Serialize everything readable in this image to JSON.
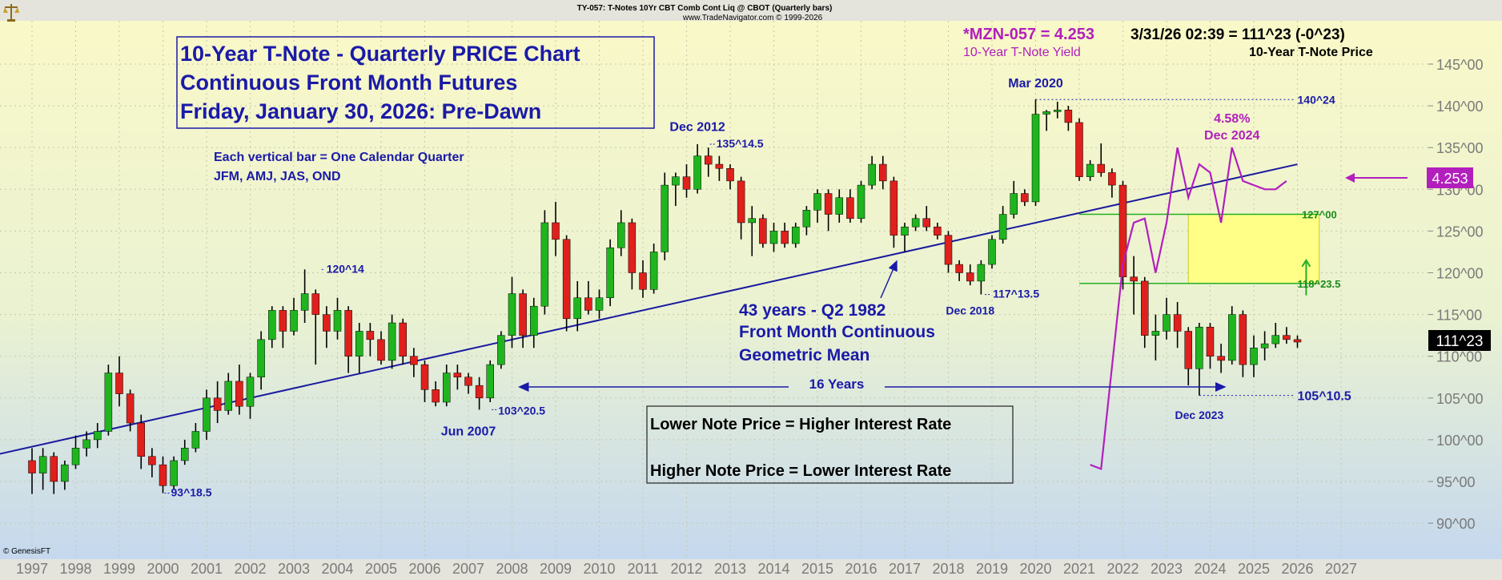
{
  "header": {
    "line1": "TY-057:  T-Notes 10Yr CBT Comb Cont Liq @ CBOT  (Quarterly bars)",
    "line2": "www.TradeNavigator.com © 1999-2026"
  },
  "readout": {
    "yield_label": "*MZN-057 = 4.253",
    "price_label": "3/31/26 02:39 = 111^23 (-0^23)",
    "yield_caption": "10-Year T-Note Yield",
    "price_caption": "10-Year T-Note Price"
  },
  "title_box": {
    "line1": "10-Year T-Note - Quarterly PRICE Chart",
    "line2": "Continuous Front Month Futures",
    "line3": "Friday, January 30, 2026: Pre-Dawn"
  },
  "notes": {
    "bar_note1": "Each vertical bar = One Calendar Quarter",
    "bar_note2": "JFM, AMJ, JAS, OND",
    "mean_line1": "43 years - Q2 1982",
    "mean_line2": "Front Month Continuous",
    "mean_line3": "Geometric Mean",
    "span_label": "16 Years",
    "rate_line1": "Lower Note Price = Higher Interest Rate",
    "rate_line2": "Higher Note Price = Lower Interest Rate"
  },
  "copyright": "© GenesisFT",
  "icons": {
    "corner": "scale-icon"
  },
  "colors": {
    "up": "#1fb51f",
    "down": "#e0201c",
    "annotation": "#1a1aa8",
    "yield": "#b21fbd",
    "trend": "#1a1aa0",
    "box": "#ffff88",
    "support": "#22b022"
  },
  "chart_data": {
    "type": "candlestick",
    "x_axis": {
      "labels": [
        "1997",
        "1998",
        "1999",
        "2000",
        "2001",
        "2002",
        "2003",
        "2004",
        "2005",
        "2006",
        "2007",
        "2008",
        "2009",
        "2010",
        "2011",
        "2012",
        "2013",
        "2014",
        "2015",
        "2016",
        "2017",
        "2018",
        "2019",
        "2020",
        "2021",
        "2022",
        "2023",
        "2024",
        "2025",
        "2026",
        "2027"
      ]
    },
    "y_axis": {
      "range": [
        85,
        149
      ],
      "tick_labels": [
        "90^00",
        "95^00",
        "100^00",
        "105^00",
        "110^00",
        "115^00",
        "120^00",
        "125^00",
        "130^00",
        "135^00",
        "140^00",
        "145^00"
      ],
      "tick_values": [
        90,
        95,
        100,
        105,
        110,
        115,
        120,
        125,
        130,
        135,
        140,
        145
      ],
      "position": "right"
    },
    "candles": [
      {
        "t": 1997.0,
        "o": 97.5,
        "h": 99,
        "l": 93.5,
        "c": 96
      },
      {
        "t": 1997.25,
        "o": 96,
        "h": 99,
        "l": 94,
        "c": 98
      },
      {
        "t": 1997.5,
        "o": 98,
        "h": 98.5,
        "l": 93.5,
        "c": 95
      },
      {
        "t": 1997.75,
        "o": 95,
        "h": 97.5,
        "l": 94,
        "c": 97
      },
      {
        "t": 1998.0,
        "o": 97,
        "h": 100.5,
        "l": 96.5,
        "c": 99
      },
      {
        "t": 1998.25,
        "o": 99,
        "h": 101,
        "l": 98,
        "c": 100
      },
      {
        "t": 1998.5,
        "o": 100,
        "h": 102,
        "l": 99,
        "c": 101
      },
      {
        "t": 1998.75,
        "o": 101,
        "h": 109,
        "l": 100.5,
        "c": 108
      },
      {
        "t": 1999.0,
        "o": 108,
        "h": 110,
        "l": 104,
        "c": 105.5
      },
      {
        "t": 1999.25,
        "o": 105.5,
        "h": 106,
        "l": 101,
        "c": 102
      },
      {
        "t": 1999.5,
        "o": 102,
        "h": 103,
        "l": 96.5,
        "c": 98
      },
      {
        "t": 1999.75,
        "o": 98,
        "h": 99,
        "l": 95.5,
        "c": 97
      },
      {
        "t": 2000.0,
        "o": 97,
        "h": 98,
        "l": 93.6,
        "c": 94.5
      },
      {
        "t": 2000.25,
        "o": 94.5,
        "h": 98,
        "l": 94,
        "c": 97.5
      },
      {
        "t": 2000.5,
        "o": 97.5,
        "h": 100,
        "l": 97,
        "c": 99
      },
      {
        "t": 2000.75,
        "o": 99,
        "h": 102,
        "l": 98.5,
        "c": 101
      },
      {
        "t": 2001.0,
        "o": 101,
        "h": 106,
        "l": 100,
        "c": 105
      },
      {
        "t": 2001.25,
        "o": 105,
        "h": 107,
        "l": 102,
        "c": 103.5
      },
      {
        "t": 2001.5,
        "o": 103.5,
        "h": 108,
        "l": 103,
        "c": 107
      },
      {
        "t": 2001.75,
        "o": 107,
        "h": 109,
        "l": 103,
        "c": 104
      },
      {
        "t": 2002.0,
        "o": 104,
        "h": 108,
        "l": 102.5,
        "c": 107.5
      },
      {
        "t": 2002.25,
        "o": 107.5,
        "h": 113,
        "l": 106,
        "c": 112
      },
      {
        "t": 2002.5,
        "o": 112,
        "h": 116,
        "l": 111,
        "c": 115.5
      },
      {
        "t": 2002.75,
        "o": 115.5,
        "h": 116,
        "l": 111,
        "c": 113
      },
      {
        "t": 2003.0,
        "o": 113,
        "h": 117,
        "l": 112.5,
        "c": 115.5
      },
      {
        "t": 2003.25,
        "o": 115.5,
        "h": 120.4,
        "l": 114,
        "c": 117.5
      },
      {
        "t": 2003.5,
        "o": 117.5,
        "h": 118,
        "l": 109,
        "c": 115
      },
      {
        "t": 2003.75,
        "o": 115,
        "h": 116,
        "l": 111,
        "c": 113
      },
      {
        "t": 2004.0,
        "o": 113,
        "h": 117,
        "l": 112,
        "c": 115.5
      },
      {
        "t": 2004.25,
        "o": 115.5,
        "h": 116,
        "l": 108,
        "c": 110
      },
      {
        "t": 2004.5,
        "o": 110,
        "h": 114,
        "l": 108,
        "c": 113
      },
      {
        "t": 2004.75,
        "o": 113,
        "h": 114,
        "l": 110,
        "c": 112
      },
      {
        "t": 2005.0,
        "o": 112,
        "h": 113,
        "l": 109,
        "c": 109.5
      },
      {
        "t": 2005.25,
        "o": 109.5,
        "h": 115,
        "l": 108.5,
        "c": 114
      },
      {
        "t": 2005.5,
        "o": 114,
        "h": 114.5,
        "l": 109,
        "c": 110
      },
      {
        "t": 2005.75,
        "o": 110,
        "h": 111,
        "l": 107.5,
        "c": 109
      },
      {
        "t": 2006.0,
        "o": 109,
        "h": 109.5,
        "l": 104.5,
        "c": 106
      },
      {
        "t": 2006.25,
        "o": 106,
        "h": 107,
        "l": 104,
        "c": 104.5
      },
      {
        "t": 2006.5,
        "o": 104.5,
        "h": 109,
        "l": 104,
        "c": 108
      },
      {
        "t": 2006.75,
        "o": 108,
        "h": 109,
        "l": 106,
        "c": 107.5
      },
      {
        "t": 2007.0,
        "o": 107.5,
        "h": 108,
        "l": 105.5,
        "c": 106.5
      },
      {
        "t": 2007.25,
        "o": 106.5,
        "h": 107.5,
        "l": 103.6,
        "c": 105
      },
      {
        "t": 2007.5,
        "o": 105,
        "h": 109.5,
        "l": 104.5,
        "c": 109
      },
      {
        "t": 2007.75,
        "o": 109,
        "h": 113,
        "l": 108.5,
        "c": 112.5
      },
      {
        "t": 2008.0,
        "o": 112.5,
        "h": 119.5,
        "l": 111,
        "c": 117.5
      },
      {
        "t": 2008.25,
        "o": 117.5,
        "h": 118,
        "l": 111,
        "c": 112.5
      },
      {
        "t": 2008.5,
        "o": 112.5,
        "h": 117,
        "l": 111,
        "c": 116
      },
      {
        "t": 2008.75,
        "o": 116,
        "h": 127.5,
        "l": 115,
        "c": 126
      },
      {
        "t": 2009.0,
        "o": 126,
        "h": 128.5,
        "l": 122,
        "c": 124
      },
      {
        "t": 2009.25,
        "o": 124,
        "h": 124.5,
        "l": 113,
        "c": 114.5
      },
      {
        "t": 2009.5,
        "o": 114.5,
        "h": 119,
        "l": 113,
        "c": 117
      },
      {
        "t": 2009.75,
        "o": 117,
        "h": 119,
        "l": 115,
        "c": 115.5
      },
      {
        "t": 2010.0,
        "o": 115.5,
        "h": 118,
        "l": 114.5,
        "c": 117
      },
      {
        "t": 2010.25,
        "o": 117,
        "h": 124,
        "l": 116,
        "c": 123
      },
      {
        "t": 2010.5,
        "o": 123,
        "h": 127.5,
        "l": 122,
        "c": 126
      },
      {
        "t": 2010.75,
        "o": 126,
        "h": 126.5,
        "l": 118,
        "c": 120
      },
      {
        "t": 2011.0,
        "o": 120,
        "h": 121.5,
        "l": 117,
        "c": 118
      },
      {
        "t": 2011.25,
        "o": 118,
        "h": 123.5,
        "l": 117.5,
        "c": 122.5
      },
      {
        "t": 2011.5,
        "o": 122.5,
        "h": 132,
        "l": 121.5,
        "c": 130.5
      },
      {
        "t": 2011.75,
        "o": 130.5,
        "h": 132,
        "l": 128,
        "c": 131.5
      },
      {
        "t": 2012.0,
        "o": 131.5,
        "h": 133,
        "l": 129,
        "c": 130
      },
      {
        "t": 2012.25,
        "o": 130,
        "h": 135.4,
        "l": 129.5,
        "c": 134
      },
      {
        "t": 2012.5,
        "o": 134,
        "h": 135,
        "l": 131.5,
        "c": 133
      },
      {
        "t": 2012.75,
        "o": 133,
        "h": 134,
        "l": 131,
        "c": 132.5
      },
      {
        "t": 2013.0,
        "o": 132.5,
        "h": 133,
        "l": 130,
        "c": 131
      },
      {
        "t": 2013.25,
        "o": 131,
        "h": 131.5,
        "l": 124,
        "c": 126
      },
      {
        "t": 2013.5,
        "o": 126,
        "h": 128,
        "l": 122,
        "c": 126.5
      },
      {
        "t": 2013.75,
        "o": 126.5,
        "h": 127,
        "l": 123,
        "c": 123.5
      },
      {
        "t": 2014.0,
        "o": 123.5,
        "h": 126,
        "l": 122.5,
        "c": 125
      },
      {
        "t": 2014.25,
        "o": 125,
        "h": 126,
        "l": 123,
        "c": 123.5
      },
      {
        "t": 2014.5,
        "o": 123.5,
        "h": 126,
        "l": 123,
        "c": 125.5
      },
      {
        "t": 2014.75,
        "o": 125.5,
        "h": 128,
        "l": 124.5,
        "c": 127.5
      },
      {
        "t": 2015.0,
        "o": 127.5,
        "h": 130,
        "l": 126,
        "c": 129.5
      },
      {
        "t": 2015.25,
        "o": 129.5,
        "h": 130,
        "l": 125,
        "c": 127
      },
      {
        "t": 2015.5,
        "o": 127,
        "h": 130,
        "l": 126,
        "c": 129
      },
      {
        "t": 2015.75,
        "o": 129,
        "h": 130,
        "l": 126,
        "c": 126.5
      },
      {
        "t": 2016.0,
        "o": 126.5,
        "h": 131,
        "l": 126,
        "c": 130.5
      },
      {
        "t": 2016.25,
        "o": 130.5,
        "h": 134,
        "l": 130,
        "c": 133
      },
      {
        "t": 2016.5,
        "o": 133,
        "h": 134,
        "l": 130,
        "c": 131
      },
      {
        "t": 2016.75,
        "o": 131,
        "h": 131.5,
        "l": 123,
        "c": 124.5
      },
      {
        "t": 2017.0,
        "o": 124.5,
        "h": 126,
        "l": 122.5,
        "c": 125.5
      },
      {
        "t": 2017.25,
        "o": 125.5,
        "h": 127,
        "l": 125,
        "c": 126.5
      },
      {
        "t": 2017.5,
        "o": 126.5,
        "h": 128,
        "l": 125,
        "c": 125.5
      },
      {
        "t": 2017.75,
        "o": 125.5,
        "h": 126,
        "l": 124,
        "c": 124.5
      },
      {
        "t": 2018.0,
        "o": 124.5,
        "h": 125,
        "l": 120,
        "c": 121
      },
      {
        "t": 2018.25,
        "o": 121,
        "h": 121.5,
        "l": 119,
        "c": 120
      },
      {
        "t": 2018.5,
        "o": 120,
        "h": 121,
        "l": 118.5,
        "c": 119
      },
      {
        "t": 2018.75,
        "o": 119,
        "h": 121.5,
        "l": 117.4,
        "c": 121
      },
      {
        "t": 2019.0,
        "o": 121,
        "h": 124.5,
        "l": 120.5,
        "c": 124
      },
      {
        "t": 2019.25,
        "o": 124,
        "h": 128,
        "l": 123.5,
        "c": 127
      },
      {
        "t": 2019.5,
        "o": 127,
        "h": 131,
        "l": 126.5,
        "c": 129.5
      },
      {
        "t": 2019.75,
        "o": 129.5,
        "h": 130,
        "l": 128,
        "c": 128.5
      },
      {
        "t": 2020.0,
        "o": 128.5,
        "h": 140.75,
        "l": 128,
        "c": 139
      },
      {
        "t": 2020.25,
        "o": 139,
        "h": 139.5,
        "l": 137,
        "c": 139.3
      },
      {
        "t": 2020.5,
        "o": 139.3,
        "h": 140.5,
        "l": 138.5,
        "c": 139.5
      },
      {
        "t": 2020.75,
        "o": 139.5,
        "h": 140,
        "l": 137,
        "c": 138
      },
      {
        "t": 2021.0,
        "o": 138,
        "h": 138.5,
        "l": 131,
        "c": 131.5
      },
      {
        "t": 2021.25,
        "o": 131.5,
        "h": 133.5,
        "l": 131,
        "c": 133
      },
      {
        "t": 2021.5,
        "o": 133,
        "h": 135.5,
        "l": 131.5,
        "c": 132
      },
      {
        "t": 2021.75,
        "o": 132,
        "h": 132.5,
        "l": 129,
        "c": 130.5
      },
      {
        "t": 2022.0,
        "o": 130.5,
        "h": 131,
        "l": 118,
        "c": 119.5
      },
      {
        "t": 2022.25,
        "o": 119.5,
        "h": 122,
        "l": 115,
        "c": 119
      },
      {
        "t": 2022.5,
        "o": 119,
        "h": 119.5,
        "l": 111,
        "c": 112.5
      },
      {
        "t": 2022.75,
        "o": 112.5,
        "h": 115,
        "l": 109.5,
        "c": 113
      },
      {
        "t": 2023.0,
        "o": 113,
        "h": 117,
        "l": 112,
        "c": 115
      },
      {
        "t": 2023.25,
        "o": 115,
        "h": 116.5,
        "l": 111,
        "c": 113
      },
      {
        "t": 2023.5,
        "o": 113,
        "h": 113.5,
        "l": 106.5,
        "c": 108.5
      },
      {
        "t": 2023.75,
        "o": 108.5,
        "h": 114,
        "l": 105.3,
        "c": 113.5
      },
      {
        "t": 2024.0,
        "o": 113.5,
        "h": 114,
        "l": 108.5,
        "c": 110
      },
      {
        "t": 2024.25,
        "o": 110,
        "h": 111.5,
        "l": 108,
        "c": 109.5
      },
      {
        "t": 2024.5,
        "o": 109.5,
        "h": 116,
        "l": 109,
        "c": 115
      },
      {
        "t": 2024.75,
        "o": 115,
        "h": 115.5,
        "l": 107.5,
        "c": 109
      },
      {
        "t": 2025.0,
        "o": 109,
        "h": 112.5,
        "l": 107.5,
        "c": 111
      },
      {
        "t": 2025.25,
        "o": 111,
        "h": 113,
        "l": 109.5,
        "c": 111.5
      },
      {
        "t": 2025.5,
        "o": 111.5,
        "h": 114,
        "l": 111,
        "c": 112.5
      },
      {
        "t": 2025.75,
        "o": 112.5,
        "h": 113.5,
        "l": 111.5,
        "c": 112
      },
      {
        "t": 2026.0,
        "o": 112,
        "h": 112.5,
        "l": 111,
        "c": 111.7
      }
    ],
    "trend_line": [
      {
        "t": 1996.0,
        "v": 98
      },
      {
        "t": 2026.0,
        "v": 133
      }
    ],
    "yield_series": {
      "name": "10-Year T-Note Yield",
      "points": [
        {
          "t": 2021.25,
          "v": 97
        },
        {
          "t": 2021.5,
          "v": 96.5
        },
        {
          "t": 2022.0,
          "v": 121
        },
        {
          "t": 2022.25,
          "v": 126
        },
        {
          "t": 2022.5,
          "v": 126.5
        },
        {
          "t": 2022.75,
          "v": 120
        },
        {
          "t": 2023.0,
          "v": 126
        },
        {
          "t": 2023.25,
          "v": 135
        },
        {
          "t": 2023.5,
          "v": 129
        },
        {
          "t": 2023.75,
          "v": 133
        },
        {
          "t": 2024.0,
          "v": 132
        },
        {
          "t": 2024.25,
          "v": 126
        },
        {
          "t": 2024.5,
          "v": 135
        },
        {
          "t": 2024.75,
          "v": 131
        },
        {
          "t": 2025.0,
          "v": 130.5
        },
        {
          "t": 2025.25,
          "v": 130
        },
        {
          "t": 2025.5,
          "v": 130
        },
        {
          "t": 2025.75,
          "v": 131
        }
      ],
      "current_label": "4.253"
    },
    "current_price_label": "111^23",
    "annotations": [
      {
        "text": "120^14",
        "t": 2003.6,
        "v": 120.4
      },
      {
        "text": "93^18.5",
        "t": 2000.0,
        "v": 93.6
      },
      {
        "text": "103^20.5",
        "t": 2007.5,
        "v": 103.6
      },
      {
        "text": "Jun 2007",
        "t": 2007.0,
        "v": 100.5
      },
      {
        "text": "Dec 2012",
        "t": 2012.25,
        "v": 137
      },
      {
        "text": "135^14.5",
        "t": 2012.5,
        "v": 135.4
      },
      {
        "text": "117^13.5",
        "t": 2018.8,
        "v": 117.4
      },
      {
        "text": "Dec 2018",
        "t": 2018.5,
        "v": 115
      },
      {
        "text": "Mar 2020",
        "t": 2020.0,
        "v": 142.2
      },
      {
        "text": "140^24",
        "t": 2026.0,
        "v": 140.75
      },
      {
        "text": "127^00",
        "t": 2026.1,
        "v": 127
      },
      {
        "text": "118^23.5",
        "t": 2026.0,
        "v": 118.7
      },
      {
        "text": "105^10.5",
        "t": 2026.0,
        "v": 105.3
      },
      {
        "text": "Dec 2023",
        "t": 2023.75,
        "v": 102.5
      },
      {
        "text": "4.58%",
        "t": 2024.5,
        "v": 138
      },
      {
        "text": "Dec 2024",
        "t": 2024.5,
        "v": 136
      }
    ]
  }
}
